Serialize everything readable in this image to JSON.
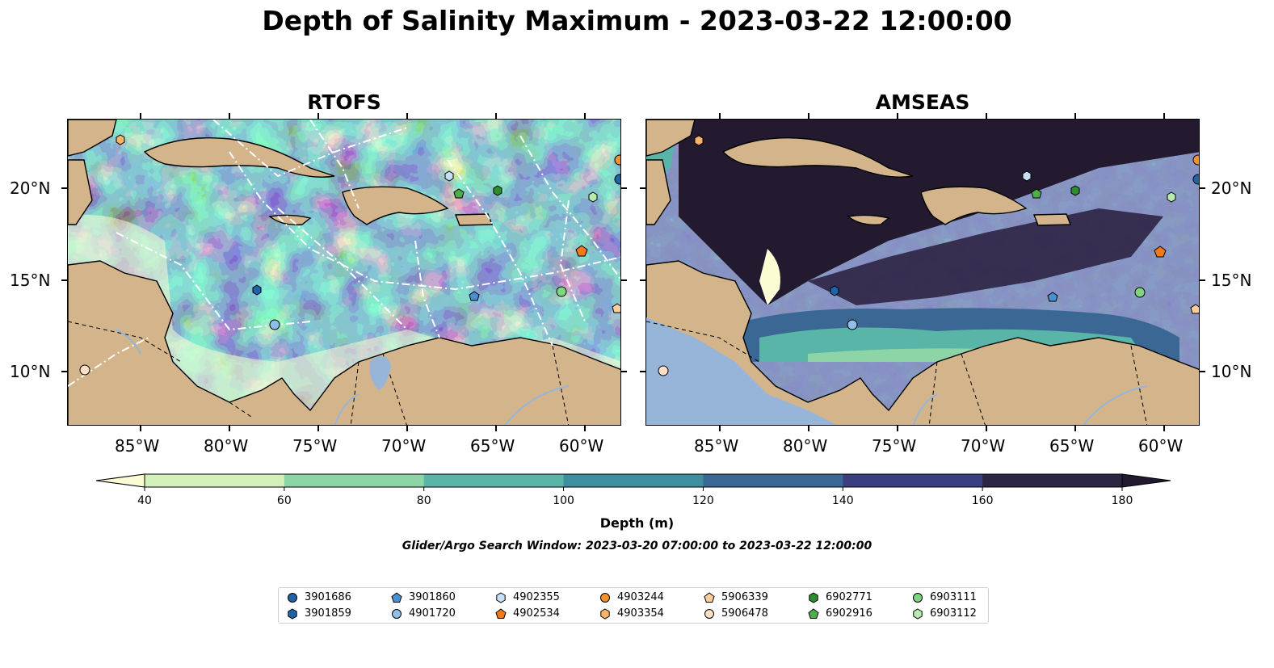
{
  "title": "Depth of Salinity Maximum - 2023-03-22 12:00:00",
  "panels": [
    {
      "title": "RTOFS"
    },
    {
      "title": "AMSEAS"
    }
  ],
  "axes": {
    "lon_ticks": [
      "85°W",
      "80°W",
      "75°W",
      "70°W",
      "65°W",
      "60°W"
    ],
    "lat_ticks": [
      "20°N",
      "15°N",
      "10°N"
    ]
  },
  "colorbar": {
    "label": "Depth (m)",
    "ticks": [
      "40",
      "60",
      "80",
      "100",
      "120",
      "140",
      "160",
      "180"
    ],
    "colors": [
      "#fbfcd3",
      "#d3f0bb",
      "#8dd5a6",
      "#58b5a8",
      "#3f8e9e",
      "#3a6794",
      "#3c3f7f",
      "#2e2444",
      "#231a30"
    ]
  },
  "subtitle": "Glider/Argo Search Window: 2023-03-20 07:00:00 to 2023-03-22 12:00:00",
  "land_color": "#d3b48b",
  "legend": {
    "items": [
      {
        "label": "3901686",
        "shape": "circle",
        "color": "#1f64a8"
      },
      {
        "label": "3901859",
        "shape": "hexagon",
        "color": "#1f64a8"
      },
      {
        "label": "3901860",
        "shape": "pentagon",
        "color": "#4a8fd0"
      },
      {
        "label": "4901720",
        "shape": "circle",
        "color": "#8fbfe6"
      },
      {
        "label": "4902355",
        "shape": "hexagon",
        "color": "#c6e0f5"
      },
      {
        "label": "4902534",
        "shape": "pentagon",
        "color": "#f07a1a"
      },
      {
        "label": "4903244",
        "shape": "circle",
        "color": "#f5922e"
      },
      {
        "label": "4903354",
        "shape": "hexagon",
        "color": "#f9b36b"
      },
      {
        "label": "5906339",
        "shape": "pentagon",
        "color": "#fbcd9a"
      },
      {
        "label": "5906478",
        "shape": "circle",
        "color": "#fde0c6"
      },
      {
        "label": "6902771",
        "shape": "hexagon",
        "color": "#2e8b2e"
      },
      {
        "label": "6902916",
        "shape": "pentagon",
        "color": "#4caf4c"
      },
      {
        "label": "6903111",
        "shape": "circle",
        "color": "#7ed67e"
      },
      {
        "label": "6903112",
        "shape": "hexagon",
        "color": "#b8ebb0"
      }
    ]
  }
}
